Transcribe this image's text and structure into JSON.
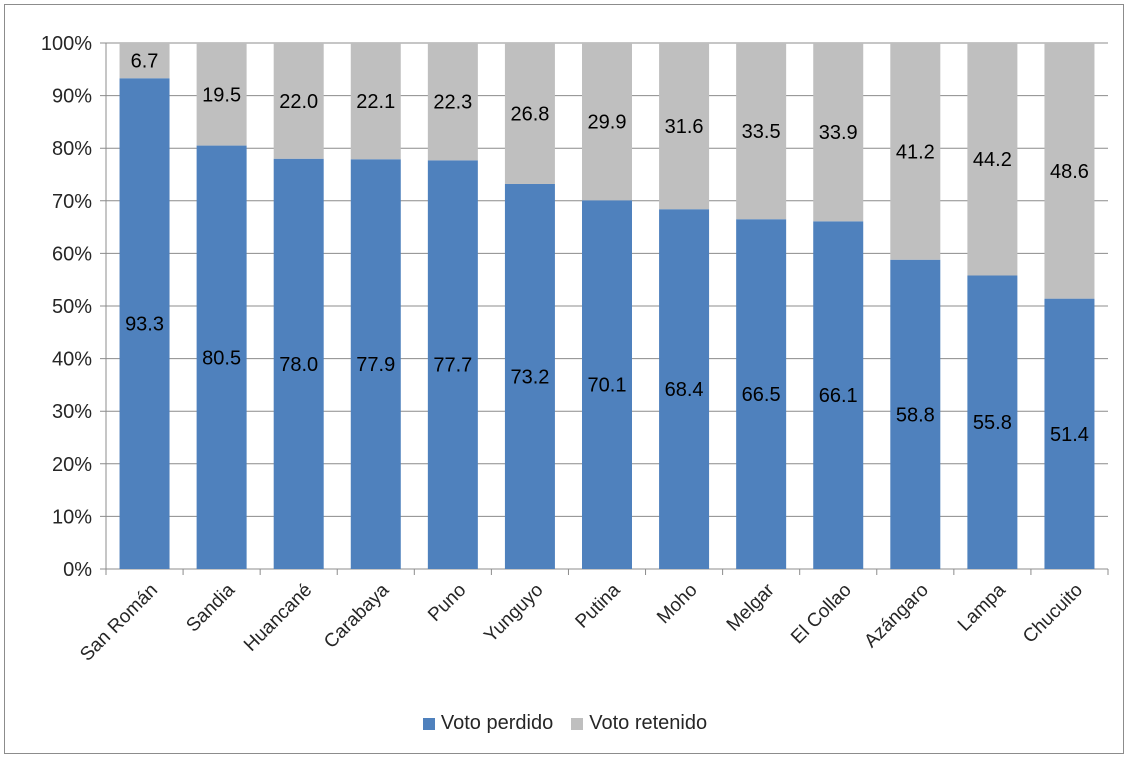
{
  "chart_data": {
    "type": "bar",
    "stacked": true,
    "percent": true,
    "categories": [
      "San Román",
      "Sandia",
      "Huancané",
      "Carabaya",
      "Puno",
      "Yunguyo",
      "Putina",
      "Moho",
      "Melgar",
      "El Collao",
      "Azángaro",
      "Lampa",
      "Chucuito"
    ],
    "series": [
      {
        "name": "Voto perdido",
        "color": "#4f81bd",
        "values": [
          93.3,
          80.5,
          78.0,
          77.9,
          77.7,
          73.2,
          70.1,
          68.4,
          66.5,
          66.1,
          58.8,
          55.8,
          51.4
        ],
        "labels": [
          "93.3",
          "80.5",
          "78.0",
          "77.9",
          "77.7",
          "73.2",
          "70.1",
          "68.4",
          "66.5",
          "66.1",
          "58.8",
          "55.8",
          "51.4"
        ]
      },
      {
        "name": "Voto retenido",
        "color": "#bfbfbf",
        "values": [
          6.7,
          19.5,
          22.0,
          22.1,
          22.3,
          26.8,
          29.9,
          31.6,
          33.5,
          33.9,
          41.2,
          44.2,
          48.6
        ],
        "labels": [
          "6.7",
          "19.5",
          "22.0",
          "22.1",
          "22.3",
          "26.8",
          "29.9",
          "31.6",
          "33.5",
          "33.9",
          "41.2",
          "44.2",
          "48.6"
        ]
      }
    ],
    "y_ticks": [
      "0%",
      "10%",
      "20%",
      "30%",
      "40%",
      "50%",
      "60%",
      "70%",
      "80%",
      "90%",
      "100%"
    ],
    "ylim": [
      0,
      100
    ],
    "grid": true,
    "legend_position": "bottom"
  }
}
